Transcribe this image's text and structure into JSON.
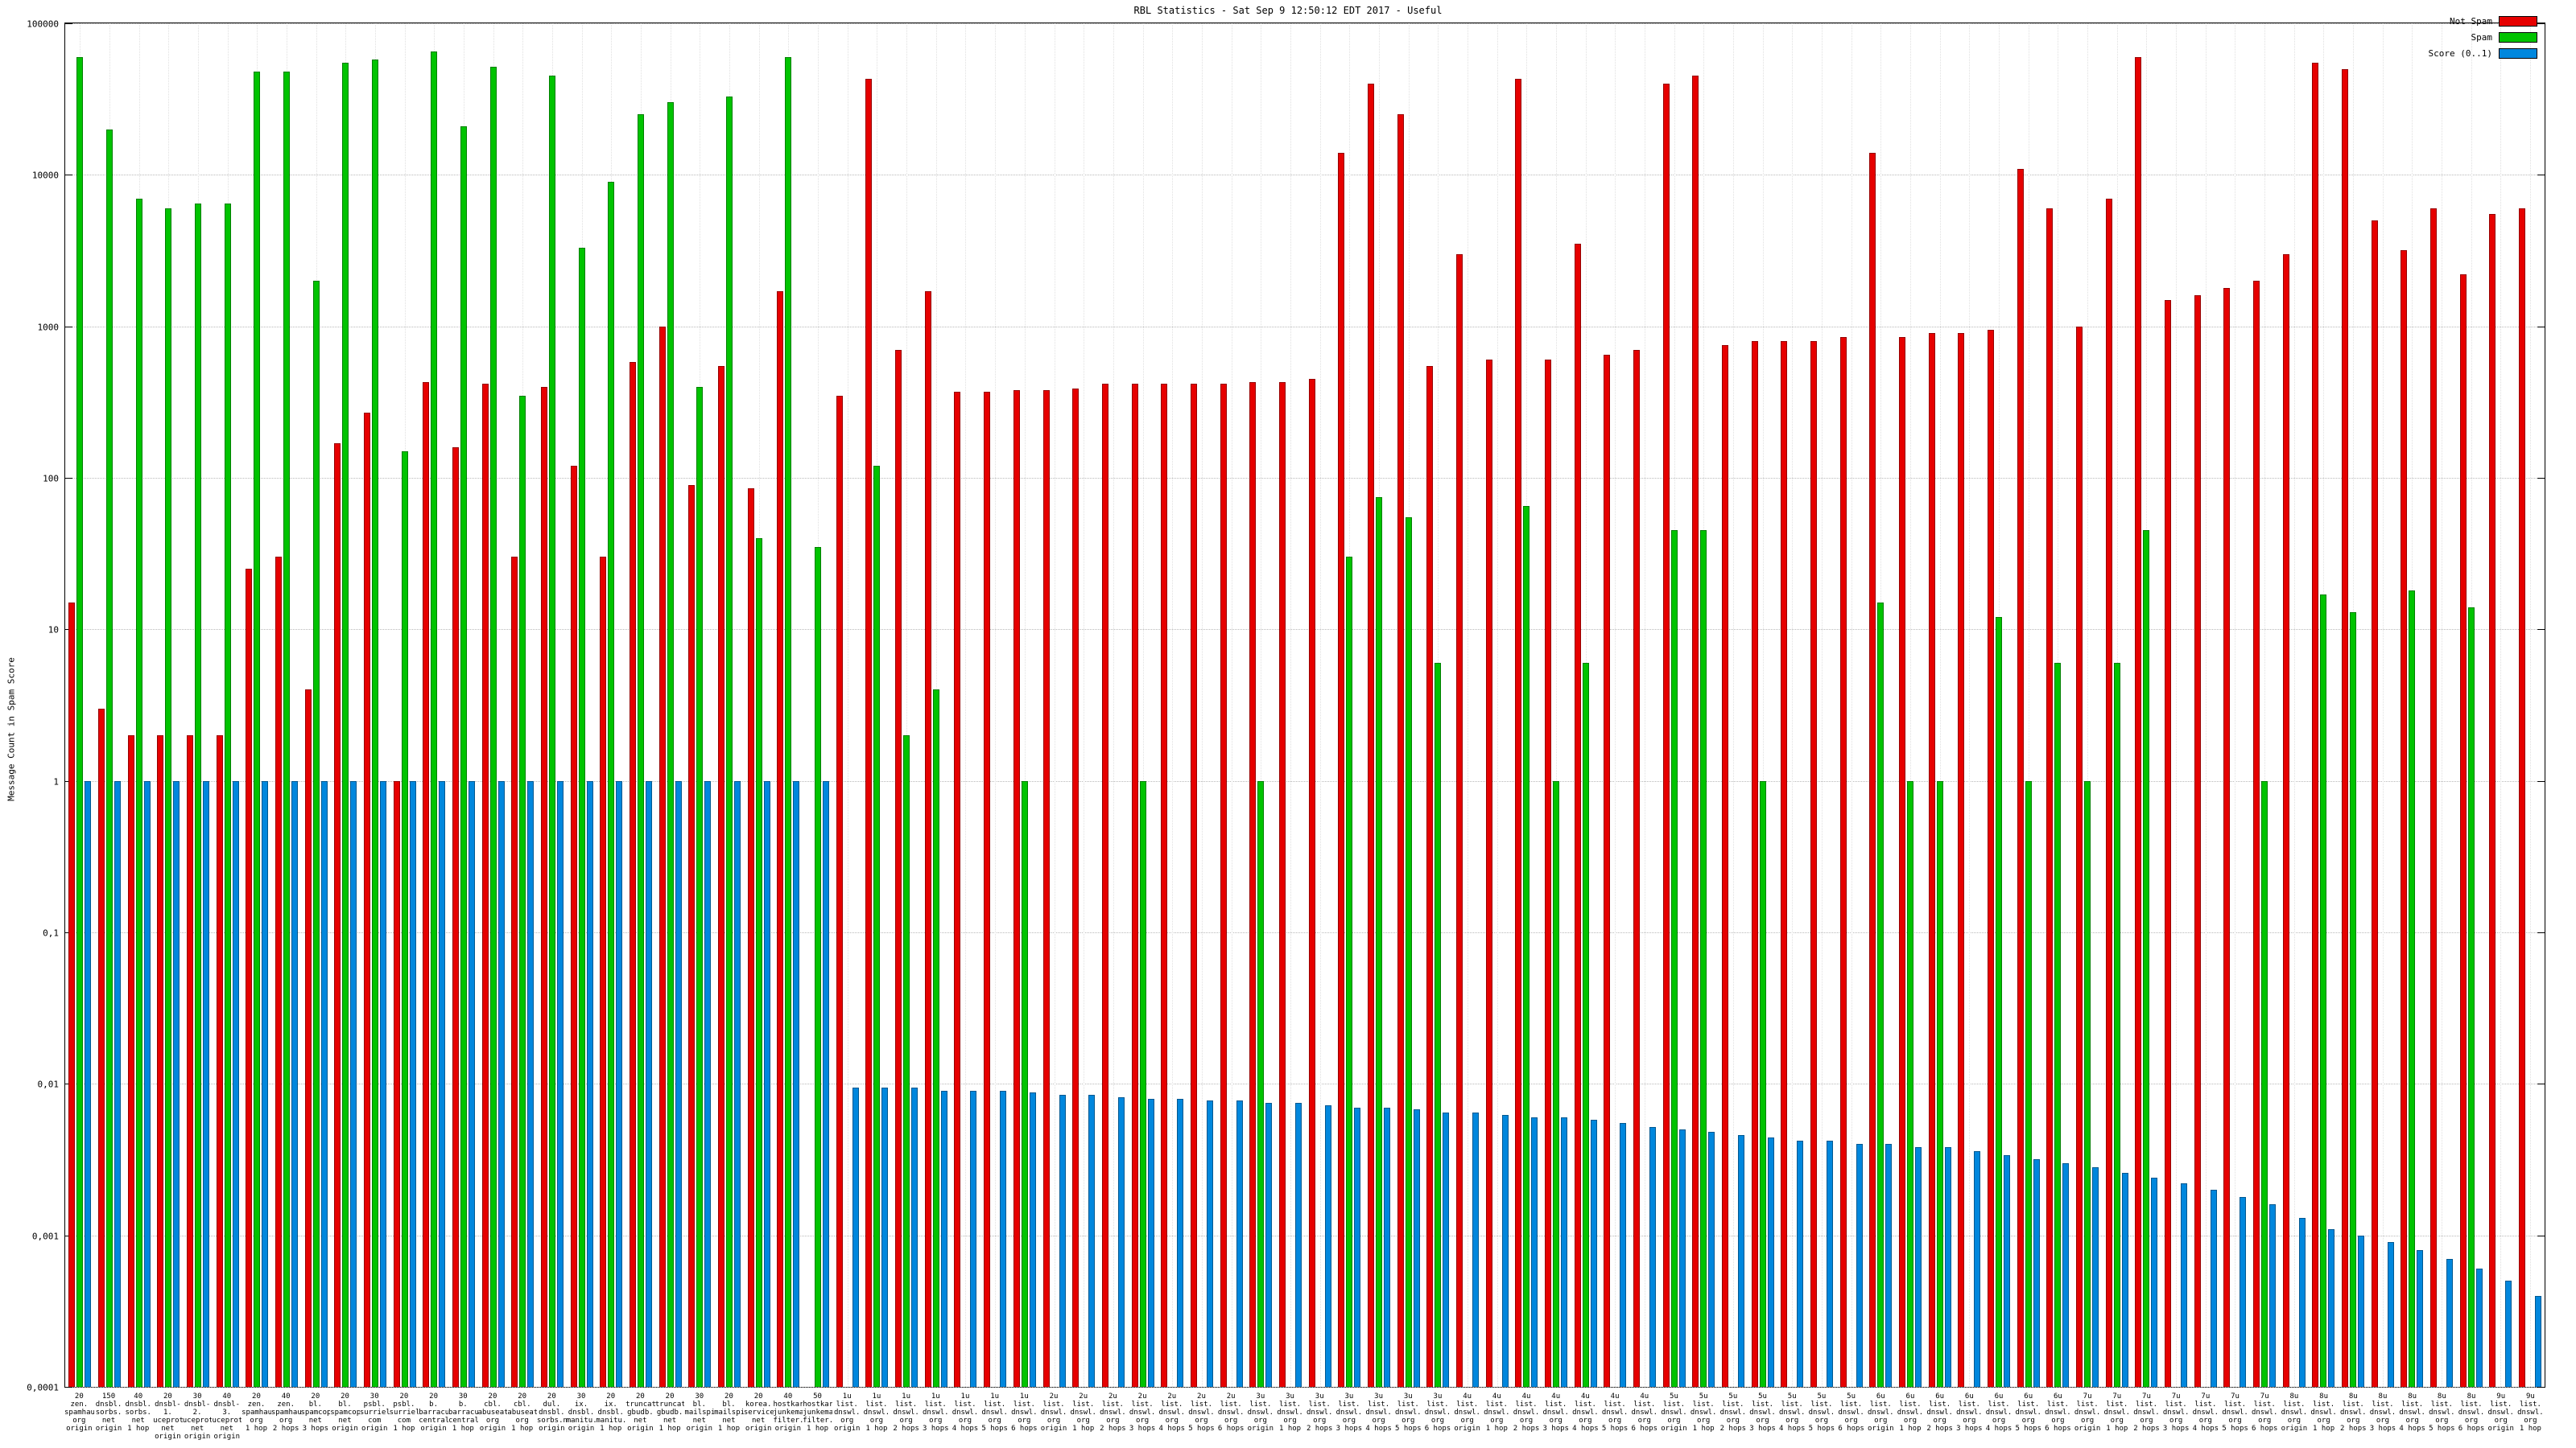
{
  "title": "RBL Statistics - Sat Sep  9 12:50:12 EDT 2017 - Useful",
  "ylabel": "Message Count in Spam Score",
  "legend": [
    {
      "label": "Not Spam",
      "color": "#e60000"
    },
    {
      "label": "Spam",
      "color": "#00c300"
    },
    {
      "label": "Score (0..1)",
      "color": "#0087dd"
    }
  ],
  "colors": {
    "not_spam": "#e60000",
    "spam": "#00c300",
    "score": "#0087dd",
    "grid": "#b9b9b9"
  },
  "chart_data": {
    "type": "bar",
    "scale": "log",
    "ylim": [
      0.0001,
      100000
    ],
    "ytick_labels": [
      "100000",
      "10000",
      "1000",
      "100",
      "10",
      "1",
      "0,1",
      "0,01",
      "0,001",
      "0,0001"
    ],
    "grid": true,
    "legend_position": "top-right",
    "categories": [
      "20\nzen.\nspamhaus.\norg\norigin",
      "150\ndnsbl.\nsorbs.\nnet\norigin",
      "40\ndnsbl.\nsorbs.\nnet\n1 hop",
      "20\ndnsbl-1.\nuceprotect.\nnet\norigin",
      "30\ndnsbl-2.\nuceprotect.\nnet\norigin",
      "40\ndnsbl-3.\nuceprotect.\nnet\norigin",
      "20\nzen.\nspamhaus.\norg\n1 hop",
      "40\nzen.\nspamhaus.\norg\n2 hops",
      "20\nbl.\nspamcop.\nnet\n3 hops",
      "20\nbl.\nspamcop.\nnet\norigin",
      "30\npsbl.\nsurriel.\ncom\norigin",
      "20\npsbl.\nsurriel.\ncom\n1 hop",
      "20\nb.\nbarracuda\ncentral.org\norigin",
      "30\nb.\nbarracuda\ncentral.org\n1 hop",
      "20\ncbl.\nabuseat.\norg\norigin",
      "20\ncbl.\nabuseat.\norg\n1 hop",
      "20\ndul.\ndnsbl.\nsorbs.net\norigin",
      "30\nix.\ndnsbl.\nmanitu.net\norigin",
      "20\nix.\ndnsbl.\nmanitu.net\n1 hop",
      "20\ntruncate.\ngbudb.\nnet\norigin",
      "20\ntruncate.\ngbudb.\nnet\n1 hop",
      "30\nbl.\nmailspike.\nnet\norigin",
      "20\nbl.\nmailspike.\nnet\n1 hop",
      "20\nkorea.\nservices.\nnet\norigin",
      "40\nhostkarma.\njunkemail\nfilter.com\norigin",
      "50\nhostkarma.\njunkemail\nfilter.com\n1 hop",
      "1u\nlist.\ndnswl.\norg\norigin",
      "1u\nlist.\ndnswl.\norg\n1 hop",
      "1u\nlist.\ndnswl.\norg\n2 hops",
      "1u\nlist.\ndnswl.\norg\n3 hops",
      "1u\nlist.\ndnswl.\norg\n4 hops",
      "1u\nlist.\ndnswl.\norg\n5 hops",
      "1u\nlist.\ndnswl.\norg\n6 hops",
      "2u\nlist.\ndnswl.\norg\norigin",
      "2u\nlist.\ndnswl.\norg\n1 hop",
      "2u\nlist.\ndnswl.\norg\n2 hops",
      "2u\nlist.\ndnswl.\norg\n3 hops",
      "2u\nlist.\ndnswl.\norg\n4 hops",
      "2u\nlist.\ndnswl.\norg\n5 hops",
      "2u\nlist.\ndnswl.\norg\n6 hops",
      "3u\nlist.\ndnswl.\norg\norigin",
      "3u\nlist.\ndnswl.\norg\n1 hop",
      "3u\nlist.\ndnswl.\norg\n2 hops",
      "3u\nlist.\ndnswl.\norg\n3 hops",
      "3u\nlist.\ndnswl.\norg\n4 hops",
      "3u\nlist.\ndnswl.\norg\n5 hops",
      "3u\nlist.\ndnswl.\norg\n6 hops",
      "4u\nlist.\ndnswl.\norg\norigin",
      "4u\nlist.\ndnswl.\norg\n1 hop",
      "4u\nlist.\ndnswl.\norg\n2 hops",
      "4u\nlist.\ndnswl.\norg\n3 hops",
      "4u\nlist.\ndnswl.\norg\n4 hops",
      "4u\nlist.\ndnswl.\norg\n5 hops",
      "4u\nlist.\ndnswl.\norg\n6 hops",
      "5u\nlist.\ndnswl.\norg\norigin",
      "5u\nlist.\ndnswl.\norg\n1 hop",
      "5u\nlist.\ndnswl.\norg\n2 hops",
      "5u\nlist.\ndnswl.\norg\n3 hops",
      "5u\nlist.\ndnswl.\norg\n4 hops",
      "5u\nlist.\ndnswl.\norg\n5 hops",
      "5u\nlist.\ndnswl.\norg\n6 hops",
      "6u\nlist.\ndnswl.\norg\norigin",
      "6u\nlist.\ndnswl.\norg\n1 hop",
      "6u\nlist.\ndnswl.\norg\n2 hops",
      "6u\nlist.\ndnswl.\norg\n3 hops",
      "6u\nlist.\ndnswl.\norg\n4 hops",
      "6u\nlist.\ndnswl.\norg\n5 hops",
      "6u\nlist.\ndnswl.\norg\n6 hops",
      "7u\nlist.\ndnswl.\norg\norigin",
      "7u\nlist.\ndnswl.\norg\n1 hop",
      "7u\nlist.\ndnswl.\norg\n2 hops",
      "7u\nlist.\ndnswl.\norg\n3 hops",
      "7u\nlist.\ndnswl.\norg\n4 hops",
      "7u\nlist.\ndnswl.\norg\n5 hops",
      "7u\nlist.\ndnswl.\norg\n6 hops",
      "8u\nlist.\ndnswl.\norg\norigin",
      "8u\nlist.\ndnswl.\norg\n1 hop",
      "8u\nlist.\ndnswl.\norg\n2 hops",
      "8u\nlist.\ndnswl.\norg\n3 hops",
      "8u\nlist.\ndnswl.\norg\n4 hops",
      "8u\nlist.\ndnswl.\norg\n5 hops",
      "8u\nlist.\ndnswl.\norg\n6 hops",
      "9u\nlist.\ndnswl.\norg\norigin",
      "9u\nlist.\ndnswl.\norg\n1 hop"
    ],
    "series": [
      {
        "name": "Not Spam",
        "color": "#e60000",
        "values": [
          15,
          3,
          2,
          2,
          2,
          2,
          25,
          30,
          4,
          170,
          270,
          1,
          430,
          160,
          420,
          30,
          400,
          120,
          30,
          580,
          1000,
          90,
          550,
          85,
          1700,
          0,
          350,
          43000,
          700,
          1700,
          370,
          370,
          380,
          380,
          390,
          420,
          420,
          420,
          420,
          420,
          430,
          430,
          450,
          14000,
          40000,
          25000,
          550,
          3000,
          600,
          43000,
          600,
          3500,
          650,
          700,
          40000,
          45000,
          750,
          800,
          800,
          800,
          850,
          14000,
          850,
          900,
          900,
          950,
          11000,
          6000,
          1000,
          7000,
          60000,
          1500,
          1600,
          1800,
          2000,
          3000,
          55000,
          50000,
          5000,
          3200,
          6000,
          2200,
          5500,
          6000
        ]
      },
      {
        "name": "Spam",
        "color": "#00c300",
        "values": [
          60000,
          20000,
          7000,
          6000,
          6500,
          6500,
          48000,
          48000,
          2000,
          55000,
          58000,
          150,
          65000,
          21000,
          52000,
          350,
          45000,
          3300,
          9000,
          25000,
          30000,
          400,
          33000,
          40,
          60000,
          35,
          0,
          120,
          2,
          4,
          0,
          0,
          1,
          0,
          0,
          0,
          1,
          0,
          0,
          0,
          1,
          0,
          0,
          30,
          75,
          55,
          6,
          0,
          0,
          65,
          1,
          6,
          0,
          0,
          45,
          45,
          0,
          1,
          0,
          0,
          0,
          15,
          1,
          1,
          0,
          12,
          1,
          6,
          1,
          6,
          45,
          0,
          0,
          0,
          1,
          0,
          17,
          13,
          0,
          18,
          0,
          14,
          0,
          0
        ]
      },
      {
        "name": "Score (0..1)",
        "color": "#0087dd",
        "values": [
          1,
          1,
          1,
          1,
          1,
          1,
          1,
          1,
          1,
          1,
          1,
          1,
          1,
          1,
          1,
          1,
          1,
          1,
          1,
          1,
          1,
          1,
          1,
          1,
          1,
          1,
          0.0095,
          0.0095,
          0.0095,
          0.009,
          0.009,
          0.009,
          0.0088,
          0.0085,
          0.0085,
          0.0082,
          0.008,
          0.008,
          0.0078,
          0.0078,
          0.0075,
          0.0075,
          0.0072,
          0.007,
          0.007,
          0.0068,
          0.0065,
          0.0065,
          0.0062,
          0.006,
          0.006,
          0.0058,
          0.0055,
          0.0052,
          0.005,
          0.0048,
          0.0046,
          0.0044,
          0.0042,
          0.0042,
          0.004,
          0.004,
          0.0038,
          0.0038,
          0.0036,
          0.0034,
          0.0032,
          0.003,
          0.0028,
          0.0026,
          0.0024,
          0.0022,
          0.002,
          0.0018,
          0.0016,
          0.0013,
          0.0011,
          0.001,
          0.0009,
          0.0008,
          0.0007,
          0.0006,
          0.0005,
          0.0004
        ]
      }
    ]
  }
}
